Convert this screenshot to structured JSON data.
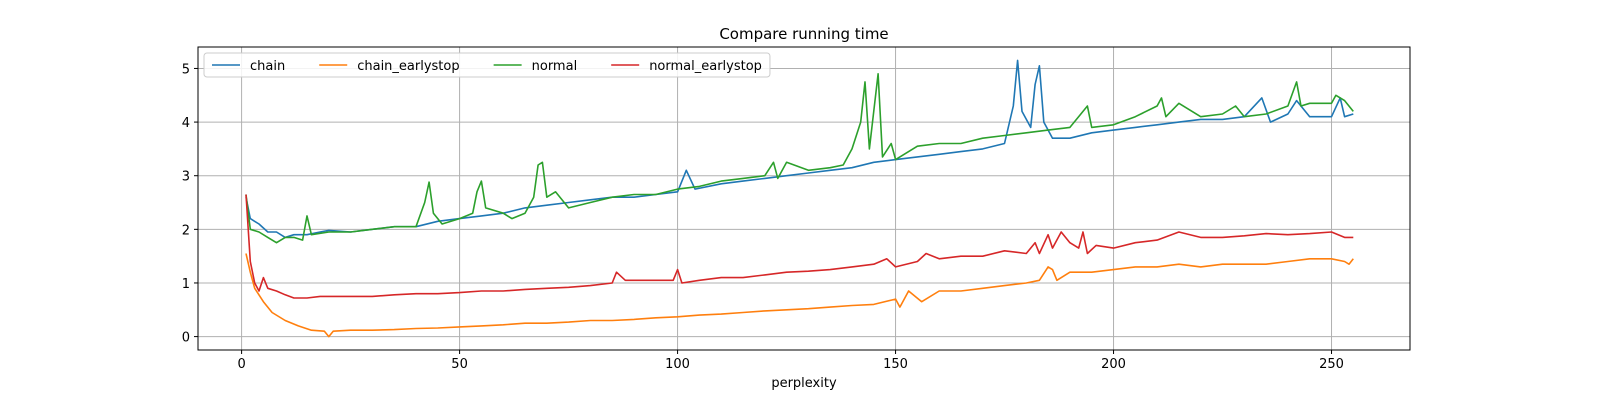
{
  "chart_data": {
    "type": "line",
    "title": "Compare running time",
    "xlabel": "perplexity",
    "ylabel": "",
    "xlim": [
      -10,
      268
    ],
    "ylim": [
      -0.25,
      5.4
    ],
    "xticks": [
      0,
      50,
      100,
      150,
      200,
      250
    ],
    "yticks": [
      0,
      1,
      2,
      3,
      4,
      5
    ],
    "grid": true,
    "legend": {
      "placement": "top-left",
      "ncol": 4
    },
    "series": [
      {
        "name": "chain",
        "color": "#1f77b4",
        "points": [
          [
            1,
            2.6
          ],
          [
            2,
            2.2
          ],
          [
            4,
            2.1
          ],
          [
            6,
            1.95
          ],
          [
            8,
            1.95
          ],
          [
            10,
            1.85
          ],
          [
            12,
            1.9
          ],
          [
            15,
            1.9
          ],
          [
            18,
            1.95
          ],
          [
            20,
            1.98
          ],
          [
            25,
            1.95
          ],
          [
            30,
            2.0
          ],
          [
            35,
            2.05
          ],
          [
            40,
            2.05
          ],
          [
            45,
            2.15
          ],
          [
            50,
            2.2
          ],
          [
            55,
            2.25
          ],
          [
            60,
            2.3
          ],
          [
            65,
            2.4
          ],
          [
            70,
            2.45
          ],
          [
            75,
            2.5
          ],
          [
            80,
            2.55
          ],
          [
            85,
            2.6
          ],
          [
            90,
            2.6
          ],
          [
            95,
            2.65
          ],
          [
            100,
            2.7
          ],
          [
            102,
            3.1
          ],
          [
            104,
            2.75
          ],
          [
            110,
            2.85
          ],
          [
            115,
            2.9
          ],
          [
            120,
            2.95
          ],
          [
            125,
            3.0
          ],
          [
            130,
            3.05
          ],
          [
            135,
            3.1
          ],
          [
            140,
            3.15
          ],
          [
            145,
            3.25
          ],
          [
            150,
            3.3
          ],
          [
            155,
            3.35
          ],
          [
            160,
            3.4
          ],
          [
            165,
            3.45
          ],
          [
            170,
            3.5
          ],
          [
            175,
            3.6
          ],
          [
            177,
            4.3
          ],
          [
            178,
            5.15
          ],
          [
            179,
            4.2
          ],
          [
            181,
            3.9
          ],
          [
            182,
            4.7
          ],
          [
            183,
            5.05
          ],
          [
            184,
            4.0
          ],
          [
            186,
            3.7
          ],
          [
            190,
            3.7
          ],
          [
            195,
            3.8
          ],
          [
            200,
            3.85
          ],
          [
            205,
            3.9
          ],
          [
            210,
            3.95
          ],
          [
            215,
            4.0
          ],
          [
            220,
            4.05
          ],
          [
            225,
            4.05
          ],
          [
            230,
            4.1
          ],
          [
            234,
            4.45
          ],
          [
            236,
            4.0
          ],
          [
            240,
            4.15
          ],
          [
            242,
            4.4
          ],
          [
            245,
            4.1
          ],
          [
            250,
            4.1
          ],
          [
            252,
            4.45
          ],
          [
            253,
            4.1
          ],
          [
            255,
            4.15
          ]
        ]
      },
      {
        "name": "chain_earlystop",
        "color": "#ff7f0e",
        "points": [
          [
            1,
            1.55
          ],
          [
            2,
            1.2
          ],
          [
            3,
            0.9
          ],
          [
            5,
            0.65
          ],
          [
            7,
            0.45
          ],
          [
            10,
            0.3
          ],
          [
            13,
            0.2
          ],
          [
            16,
            0.12
          ],
          [
            19,
            0.1
          ],
          [
            20,
            0.0
          ],
          [
            21,
            0.1
          ],
          [
            25,
            0.12
          ],
          [
            30,
            0.12
          ],
          [
            35,
            0.13
          ],
          [
            40,
            0.15
          ],
          [
            45,
            0.16
          ],
          [
            50,
            0.18
          ],
          [
            55,
            0.2
          ],
          [
            60,
            0.22
          ],
          [
            65,
            0.25
          ],
          [
            70,
            0.25
          ],
          [
            75,
            0.27
          ],
          [
            80,
            0.3
          ],
          [
            85,
            0.3
          ],
          [
            90,
            0.32
          ],
          [
            95,
            0.35
          ],
          [
            100,
            0.37
          ],
          [
            105,
            0.4
          ],
          [
            110,
            0.42
          ],
          [
            115,
            0.45
          ],
          [
            120,
            0.48
          ],
          [
            125,
            0.5
          ],
          [
            130,
            0.52
          ],
          [
            135,
            0.55
          ],
          [
            140,
            0.58
          ],
          [
            145,
            0.6
          ],
          [
            150,
            0.7
          ],
          [
            151,
            0.55
          ],
          [
            153,
            0.85
          ],
          [
            156,
            0.65
          ],
          [
            160,
            0.85
          ],
          [
            165,
            0.85
          ],
          [
            170,
            0.9
          ],
          [
            175,
            0.95
          ],
          [
            180,
            1.0
          ],
          [
            183,
            1.05
          ],
          [
            185,
            1.3
          ],
          [
            186,
            1.25
          ],
          [
            187,
            1.05
          ],
          [
            190,
            1.2
          ],
          [
            195,
            1.2
          ],
          [
            200,
            1.25
          ],
          [
            205,
            1.3
          ],
          [
            210,
            1.3
          ],
          [
            215,
            1.35
          ],
          [
            220,
            1.3
          ],
          [
            225,
            1.35
          ],
          [
            230,
            1.35
          ],
          [
            235,
            1.35
          ],
          [
            240,
            1.4
          ],
          [
            245,
            1.45
          ],
          [
            250,
            1.45
          ],
          [
            253,
            1.4
          ],
          [
            254,
            1.35
          ],
          [
            255,
            1.45
          ]
        ]
      },
      {
        "name": "normal",
        "color": "#2ca02c",
        "points": [
          [
            1,
            2.65
          ],
          [
            2,
            2.0
          ],
          [
            4,
            1.95
          ],
          [
            6,
            1.85
          ],
          [
            8,
            1.75
          ],
          [
            10,
            1.85
          ],
          [
            12,
            1.85
          ],
          [
            14,
            1.8
          ],
          [
            15,
            2.25
          ],
          [
            16,
            1.9
          ],
          [
            20,
            1.95
          ],
          [
            25,
            1.95
          ],
          [
            30,
            2.0
          ],
          [
            35,
            2.05
          ],
          [
            40,
            2.05
          ],
          [
            42,
            2.5
          ],
          [
            43,
            2.88
          ],
          [
            44,
            2.3
          ],
          [
            46,
            2.1
          ],
          [
            50,
            2.2
          ],
          [
            53,
            2.3
          ],
          [
            54,
            2.7
          ],
          [
            55,
            2.9
          ],
          [
            56,
            2.4
          ],
          [
            60,
            2.3
          ],
          [
            62,
            2.2
          ],
          [
            65,
            2.3
          ],
          [
            67,
            2.6
          ],
          [
            68,
            3.2
          ],
          [
            69,
            3.25
          ],
          [
            70,
            2.6
          ],
          [
            72,
            2.7
          ],
          [
            75,
            2.4
          ],
          [
            80,
            2.5
          ],
          [
            85,
            2.6
          ],
          [
            90,
            2.65
          ],
          [
            95,
            2.65
          ],
          [
            100,
            2.75
          ],
          [
            105,
            2.8
          ],
          [
            110,
            2.9
          ],
          [
            115,
            2.95
          ],
          [
            120,
            3.0
          ],
          [
            122,
            3.25
          ],
          [
            123,
            2.95
          ],
          [
            125,
            3.25
          ],
          [
            130,
            3.1
          ],
          [
            135,
            3.15
          ],
          [
            138,
            3.2
          ],
          [
            140,
            3.5
          ],
          [
            142,
            4.0
          ],
          [
            143,
            4.75
          ],
          [
            144,
            3.5
          ],
          [
            146,
            4.9
          ],
          [
            147,
            3.35
          ],
          [
            149,
            3.6
          ],
          [
            150,
            3.3
          ],
          [
            155,
            3.55
          ],
          [
            160,
            3.6
          ],
          [
            165,
            3.6
          ],
          [
            170,
            3.7
          ],
          [
            175,
            3.75
          ],
          [
            180,
            3.8
          ],
          [
            185,
            3.85
          ],
          [
            190,
            3.9
          ],
          [
            194,
            4.3
          ],
          [
            195,
            3.9
          ],
          [
            200,
            3.95
          ],
          [
            205,
            4.1
          ],
          [
            210,
            4.3
          ],
          [
            211,
            4.45
          ],
          [
            212,
            4.1
          ],
          [
            215,
            4.35
          ],
          [
            220,
            4.1
          ],
          [
            225,
            4.15
          ],
          [
            228,
            4.3
          ],
          [
            230,
            4.1
          ],
          [
            235,
            4.15
          ],
          [
            240,
            4.3
          ],
          [
            242,
            4.75
          ],
          [
            243,
            4.3
          ],
          [
            245,
            4.35
          ],
          [
            250,
            4.35
          ],
          [
            251,
            4.5
          ],
          [
            253,
            4.4
          ],
          [
            255,
            4.2
          ]
        ]
      },
      {
        "name": "normal_earlystop",
        "color": "#d62728",
        "points": [
          [
            1,
            2.65
          ],
          [
            2,
            1.4
          ],
          [
            3,
            1.0
          ],
          [
            4,
            0.85
          ],
          [
            5,
            1.1
          ],
          [
            6,
            0.9
          ],
          [
            8,
            0.85
          ],
          [
            10,
            0.78
          ],
          [
            12,
            0.72
          ],
          [
            15,
            0.72
          ],
          [
            18,
            0.75
          ],
          [
            20,
            0.75
          ],
          [
            25,
            0.75
          ],
          [
            30,
            0.75
          ],
          [
            35,
            0.78
          ],
          [
            40,
            0.8
          ],
          [
            45,
            0.8
          ],
          [
            50,
            0.82
          ],
          [
            55,
            0.85
          ],
          [
            60,
            0.85
          ],
          [
            65,
            0.88
          ],
          [
            70,
            0.9
          ],
          [
            75,
            0.92
          ],
          [
            80,
            0.95
          ],
          [
            85,
            1.0
          ],
          [
            86,
            1.2
          ],
          [
            88,
            1.05
          ],
          [
            90,
            1.05
          ],
          [
            95,
            1.05
          ],
          [
            99,
            1.05
          ],
          [
            100,
            1.25
          ],
          [
            101,
            1.0
          ],
          [
            105,
            1.05
          ],
          [
            110,
            1.1
          ],
          [
            115,
            1.1
          ],
          [
            120,
            1.15
          ],
          [
            125,
            1.2
          ],
          [
            130,
            1.22
          ],
          [
            135,
            1.25
          ],
          [
            140,
            1.3
          ],
          [
            145,
            1.35
          ],
          [
            148,
            1.45
          ],
          [
            150,
            1.3
          ],
          [
            155,
            1.4
          ],
          [
            157,
            1.55
          ],
          [
            160,
            1.45
          ],
          [
            165,
            1.5
          ],
          [
            170,
            1.5
          ],
          [
            175,
            1.6
          ],
          [
            180,
            1.55
          ],
          [
            182,
            1.75
          ],
          [
            183,
            1.55
          ],
          [
            185,
            1.9
          ],
          [
            186,
            1.65
          ],
          [
            188,
            1.95
          ],
          [
            190,
            1.75
          ],
          [
            192,
            1.65
          ],
          [
            193,
            1.95
          ],
          [
            194,
            1.55
          ],
          [
            196,
            1.7
          ],
          [
            200,
            1.65
          ],
          [
            205,
            1.75
          ],
          [
            210,
            1.8
          ],
          [
            215,
            1.95
          ],
          [
            220,
            1.85
          ],
          [
            225,
            1.85
          ],
          [
            230,
            1.88
          ],
          [
            235,
            1.92
          ],
          [
            240,
            1.9
          ],
          [
            245,
            1.92
          ],
          [
            250,
            1.95
          ],
          [
            253,
            1.85
          ],
          [
            255,
            1.85
          ]
        ]
      }
    ]
  }
}
